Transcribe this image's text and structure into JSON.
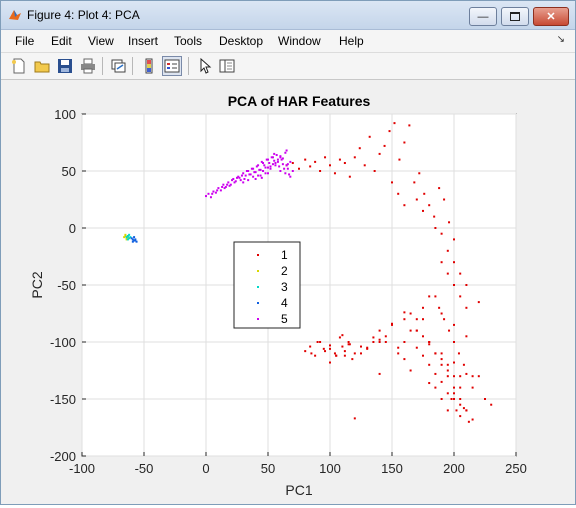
{
  "window": {
    "title": "Figure 4: Plot 4: PCA"
  },
  "menu": {
    "items": [
      {
        "id": "file",
        "label": "File"
      },
      {
        "id": "edit",
        "label": "Edit"
      },
      {
        "id": "view",
        "label": "View"
      },
      {
        "id": "insert",
        "label": "Insert"
      },
      {
        "id": "tools",
        "label": "Tools"
      },
      {
        "id": "desktop",
        "label": "Desktop"
      },
      {
        "id": "window",
        "label": "Window"
      },
      {
        "id": "help",
        "label": "Help"
      }
    ]
  },
  "toolbar": {
    "icons": [
      "new-figure-icon",
      "open-file-icon",
      "save-icon",
      "print-icon",
      "link-plot-icon",
      "colorbar-icon",
      "legend-icon",
      "pointer-icon",
      "property-inspector-icon"
    ]
  },
  "colors": {
    "class1": "#e00000",
    "class2": "#d8d800",
    "class3": "#00d8c8",
    "class4": "#1060e0",
    "class5": "#cc00ee"
  },
  "chart_data": {
    "type": "scatter",
    "title": "PCA of HAR Features",
    "xlabel": "PC1",
    "ylabel": "PC2",
    "xlim": [
      -100,
      250
    ],
    "ylim": [
      -200,
      100
    ],
    "xticks": [
      "-100",
      "-50",
      "0",
      "50",
      "100",
      "150",
      "200",
      "250"
    ],
    "yticks": [
      "100",
      "50",
      "0",
      "-50",
      "-100",
      "-150",
      "-200"
    ],
    "grid": true,
    "legend_position": "center-left",
    "series": [
      {
        "name": "1",
        "color": "#e00000",
        "x": [
          65,
          70,
          75,
          80,
          84,
          88,
          92,
          96,
          100,
          104,
          108,
          112,
          116,
          120,
          124,
          128,
          132,
          136,
          140,
          144,
          148,
          152,
          156,
          160,
          164,
          168,
          172,
          176,
          180,
          184,
          188,
          192,
          196,
          200,
          150,
          155,
          160,
          170,
          175,
          185,
          190,
          195,
          200,
          205,
          210,
          185,
          188,
          192,
          196,
          200,
          204,
          208,
          190,
          195,
          200,
          205,
          210,
          180,
          185,
          190,
          195,
          200,
          205,
          170,
          175,
          180,
          185,
          190,
          195,
          200,
          205,
          210,
          215,
          160,
          165,
          170,
          175,
          180,
          190,
          200,
          210,
          220,
          155,
          160,
          165,
          170,
          175,
          180,
          185,
          190,
          195,
          200,
          205,
          210,
          215,
          220,
          225,
          230,
          140,
          145,
          150,
          155,
          160,
          165,
          130,
          135,
          140,
          120,
          125,
          110,
          112,
          115,
          118,
          105,
          100,
          96,
          92,
          88,
          84,
          80,
          100,
          104,
          108,
          112,
          116,
          140,
          150,
          160,
          170,
          180,
          190,
          200,
          210,
          180,
          185,
          190,
          195,
          200,
          205,
          120,
          130,
          135,
          110,
          100,
          90,
          85,
          95,
          105,
          115,
          125,
          140,
          145,
          175,
          195,
          205,
          215,
          198,
          202,
          208,
          212
        ],
        "y": [
          55,
          57,
          52,
          60,
          54,
          58,
          50,
          62,
          55,
          48,
          60,
          57,
          45,
          62,
          70,
          55,
          80,
          50,
          65,
          72,
          85,
          92,
          60,
          75,
          90,
          40,
          48,
          30,
          20,
          10,
          35,
          25,
          5,
          -10,
          40,
          30,
          20,
          25,
          15,
          0,
          -5,
          -20,
          -30,
          -40,
          -50,
          -60,
          -70,
          -80,
          -90,
          -100,
          -110,
          -120,
          -30,
          -40,
          -50,
          -60,
          -70,
          -100,
          -110,
          -115,
          -125,
          -130,
          -140,
          -105,
          -112,
          -120,
          -128,
          -135,
          -145,
          -150,
          -155,
          -160,
          -130,
          -100,
          -90,
          -80,
          -70,
          -60,
          -75,
          -85,
          -95,
          -65,
          -105,
          -115,
          -125,
          -90,
          -95,
          -100,
          -110,
          -120,
          -130,
          -140,
          -150,
          -160,
          -140,
          -130,
          -150,
          -155,
          -100,
          -95,
          -85,
          -110,
          -80,
          -75,
          -105,
          -100,
          -90,
          -110,
          -104,
          -104,
          -108,
          -100,
          -115,
          -112,
          -106,
          -108,
          -100,
          -112,
          -104,
          -108,
          -103,
          -110,
          -96,
          -112,
          -102,
          -98,
          -84,
          -74,
          -90,
          -102,
          -110,
          -118,
          -128,
          -136,
          -140,
          -150,
          -160,
          -145,
          -165,
          -167,
          -106,
          -96,
          -94,
          -118,
          -100,
          -110,
          -106,
          -112,
          -102,
          -110,
          -128,
          -100,
          -80,
          -120,
          -130,
          -168,
          -150,
          -160,
          -158,
          -170
        ]
      },
      {
        "name": "2",
        "color": "#d8d800",
        "x": [
          -66,
          -65,
          -64,
          -63,
          -65,
          -64
        ],
        "y": [
          -8,
          -7,
          -9,
          -8,
          -6,
          -10
        ]
      },
      {
        "name": "3",
        "color": "#00d8c8",
        "x": [
          -64,
          -63,
          -62,
          -61,
          -63,
          -62
        ],
        "y": [
          -8,
          -7,
          -9,
          -8,
          -10,
          -6
        ]
      },
      {
        "name": "4",
        "color": "#1060e0",
        "x": [
          -60,
          -59,
          -58,
          -57,
          -56,
          -58,
          -57,
          -59
        ],
        "y": [
          -9,
          -10,
          -11,
          -10,
          -12,
          -8,
          -11,
          -12
        ]
      },
      {
        "name": "5",
        "color": "#cc00ee",
        "x": [
          0,
          2,
          4,
          6,
          8,
          10,
          12,
          14,
          16,
          18,
          20,
          22,
          24,
          26,
          28,
          30,
          32,
          34,
          36,
          38,
          40,
          42,
          44,
          46,
          48,
          50,
          52,
          54,
          56,
          58,
          60,
          62,
          64,
          66,
          68,
          70,
          5,
          9,
          13,
          17,
          21,
          25,
          29,
          33,
          37,
          41,
          45,
          49,
          53,
          57,
          61,
          65,
          15,
          19,
          23,
          27,
          31,
          35,
          39,
          43,
          47,
          51,
          55,
          59,
          63,
          67,
          30,
          34,
          38,
          42,
          46,
          50,
          54,
          58,
          62,
          66,
          40,
          44,
          48,
          52,
          56,
          60,
          64,
          68,
          55,
          60,
          65,
          50,
          45
        ],
        "y": [
          28,
          30,
          27,
          32,
          31,
          35,
          33,
          38,
          36,
          40,
          38,
          43,
          41,
          45,
          42,
          48,
          46,
          50,
          47,
          52,
          49,
          55,
          51,
          57,
          53,
          60,
          54,
          62,
          55,
          58,
          50,
          56,
          48,
          52,
          45,
          50,
          30,
          33,
          36,
          38,
          42,
          44,
          46,
          50,
          52,
          54,
          58,
          60,
          62,
          64,
          60,
          55,
          35,
          37,
          40,
          44,
          43,
          47,
          49,
          51,
          55,
          57,
          59,
          54,
          52,
          47,
          40,
          42,
          45,
          46,
          50,
          53,
          56,
          60,
          61,
          56,
          43,
          46,
          48,
          52,
          57,
          63,
          66,
          58,
          65,
          62,
          68,
          48,
          44
        ]
      }
    ]
  }
}
